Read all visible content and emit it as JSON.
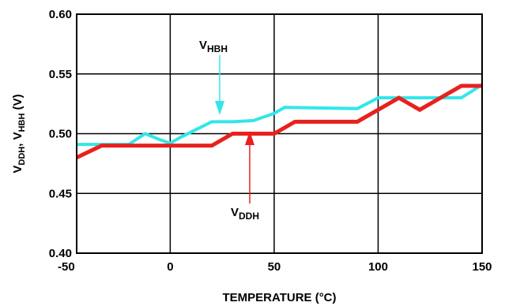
{
  "chart_data": {
    "type": "line",
    "title": "",
    "xlabel": "TEMPERATURE (°C)",
    "ylabel": {
      "main": "V",
      "sub1": "DDH",
      "sep": ", V",
      "sub2": "HBH",
      "unit": " (V)"
    },
    "xlim": [
      -45,
      150
    ],
    "ylim": [
      0.4,
      0.6
    ],
    "x_ticks": [
      -50,
      0,
      50,
      100,
      150
    ],
    "x_tick_labels": [
      "-50",
      "0",
      "50",
      "100",
      "150"
    ],
    "y_ticks": [
      0.4,
      0.45,
      0.5,
      0.55,
      0.6
    ],
    "y_tick_labels": [
      "0.40",
      "0.45",
      "0.50",
      "0.55",
      "0.60"
    ],
    "grid": true,
    "series": [
      {
        "name": "VHBH",
        "label": {
          "main": "V",
          "sub": "HBH"
        },
        "color": "#33e6ea",
        "x": [
          -45,
          -30,
          -20,
          -12,
          -5,
          0,
          5,
          20,
          30,
          40,
          50,
          55,
          90,
          100,
          110,
          140,
          150
        ],
        "y": [
          0.491,
          0.491,
          0.491,
          0.5,
          0.495,
          0.492,
          0.497,
          0.51,
          0.51,
          0.511,
          0.517,
          0.522,
          0.521,
          0.53,
          0.53,
          0.53,
          0.541
        ]
      },
      {
        "name": "VDDH",
        "label": {
          "main": "V",
          "sub": "DDH"
        },
        "color": "#e8211d",
        "x": [
          -45,
          -33,
          20,
          30,
          50,
          60,
          90,
          100,
          110,
          120,
          130,
          140,
          150
        ],
        "y": [
          0.48,
          0.49,
          0.49,
          0.5,
          0.5,
          0.51,
          0.51,
          0.52,
          0.53,
          0.52,
          0.53,
          0.54,
          0.54
        ]
      }
    ]
  }
}
